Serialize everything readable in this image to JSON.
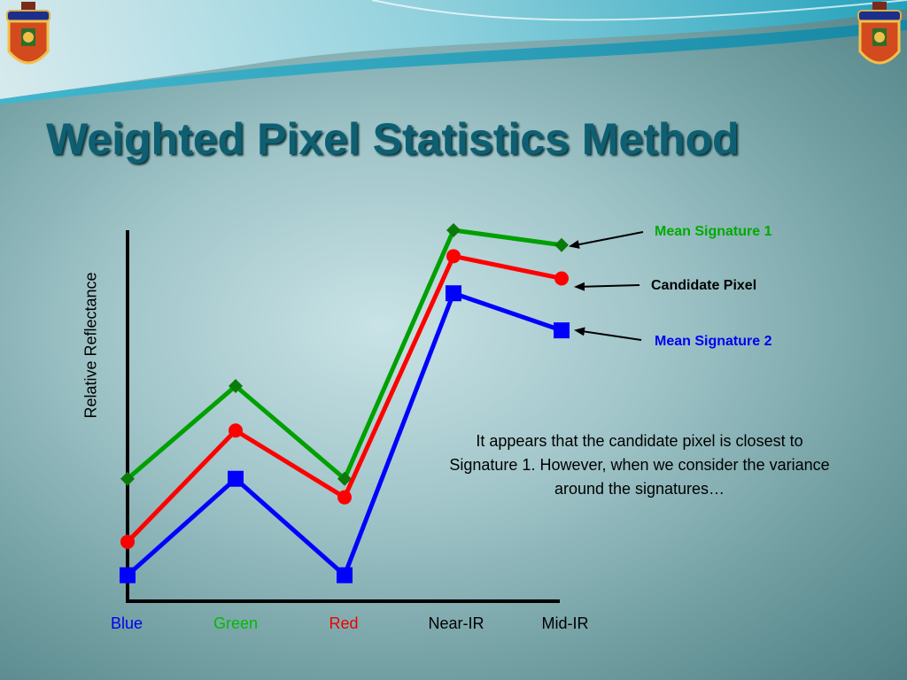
{
  "slide": {
    "title": "Weighted Pixel Statistics Method",
    "note": "It appears that the candidate pixel is closest to Signature 1.  However, when we consider the variance around the signatures…"
  },
  "chart_data": {
    "type": "line",
    "title": "",
    "xlabel": "",
    "ylabel": "Relative Reflectance",
    "categories": [
      "Blue",
      "Green",
      "Red",
      "Near-IR",
      "Mid-IR"
    ],
    "category_colors": [
      "#0000ee",
      "#00bb00",
      "#ee0000",
      "#000000",
      "#000000"
    ],
    "ylim": [
      0,
      100
    ],
    "grid": false,
    "series": [
      {
        "name": "Mean Signature 1",
        "color": "#00a000",
        "marker": "diamond",
        "values": [
          33,
          58,
          33,
          100,
          96
        ]
      },
      {
        "name": "Candidate Pixel",
        "color": "#ff0000",
        "marker": "circle",
        "values": [
          16,
          46,
          28,
          93,
          87
        ]
      },
      {
        "name": "Mean Signature 2",
        "color": "#0000ff",
        "marker": "square",
        "values": [
          7,
          33,
          7,
          83,
          73
        ]
      }
    ]
  },
  "annotations": [
    {
      "text": "Mean Signature 1",
      "color": "#00aa00"
    },
    {
      "text": "Candidate Pixel",
      "color": "#000000"
    },
    {
      "text": "Mean Signature 2",
      "color": "#0000ee"
    }
  ],
  "icons": [
    "crest-icon",
    "crest-icon"
  ]
}
